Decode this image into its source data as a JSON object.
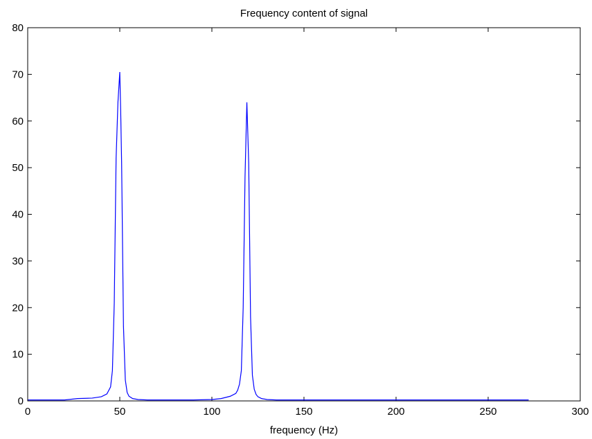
{
  "chart_data": {
    "type": "line",
    "title": "Frequency content of signal",
    "xlabel": "frequency (Hz)",
    "ylabel": "",
    "xlim": [
      0,
      300
    ],
    "ylim": [
      0,
      80
    ],
    "xticks": [
      0,
      50,
      100,
      150,
      200,
      250,
      300
    ],
    "yticks": [
      0,
      10,
      20,
      30,
      40,
      50,
      60,
      70,
      80
    ],
    "grid": false,
    "line_color": "#0000ff",
    "series": [
      {
        "x": [
          0,
          20,
          27,
          35,
          40,
          43,
          45,
          46,
          47,
          48,
          49,
          50,
          50.5,
          51,
          52,
          53,
          54,
          55,
          57,
          60,
          65,
          75,
          90,
          100,
          105,
          110,
          113,
          114,
          115,
          116,
          117,
          118,
          119,
          120,
          121,
          122,
          123,
          124,
          125,
          127,
          130,
          135,
          150,
          200,
          250,
          272
        ],
        "y": [
          0.2,
          0.2,
          0.5,
          0.6,
          0.9,
          1.5,
          3.0,
          6.5,
          21,
          52,
          64,
          70.5,
          62,
          51,
          16,
          4.5,
          1.8,
          1.0,
          0.5,
          0.3,
          0.2,
          0.2,
          0.2,
          0.3,
          0.5,
          1.0,
          1.6,
          2.3,
          3.6,
          6.5,
          20,
          48,
          64,
          51,
          18,
          5.5,
          2.5,
          1.4,
          0.9,
          0.5,
          0.3,
          0.2,
          0.2,
          0.2,
          0.2,
          0.2
        ]
      }
    ]
  }
}
